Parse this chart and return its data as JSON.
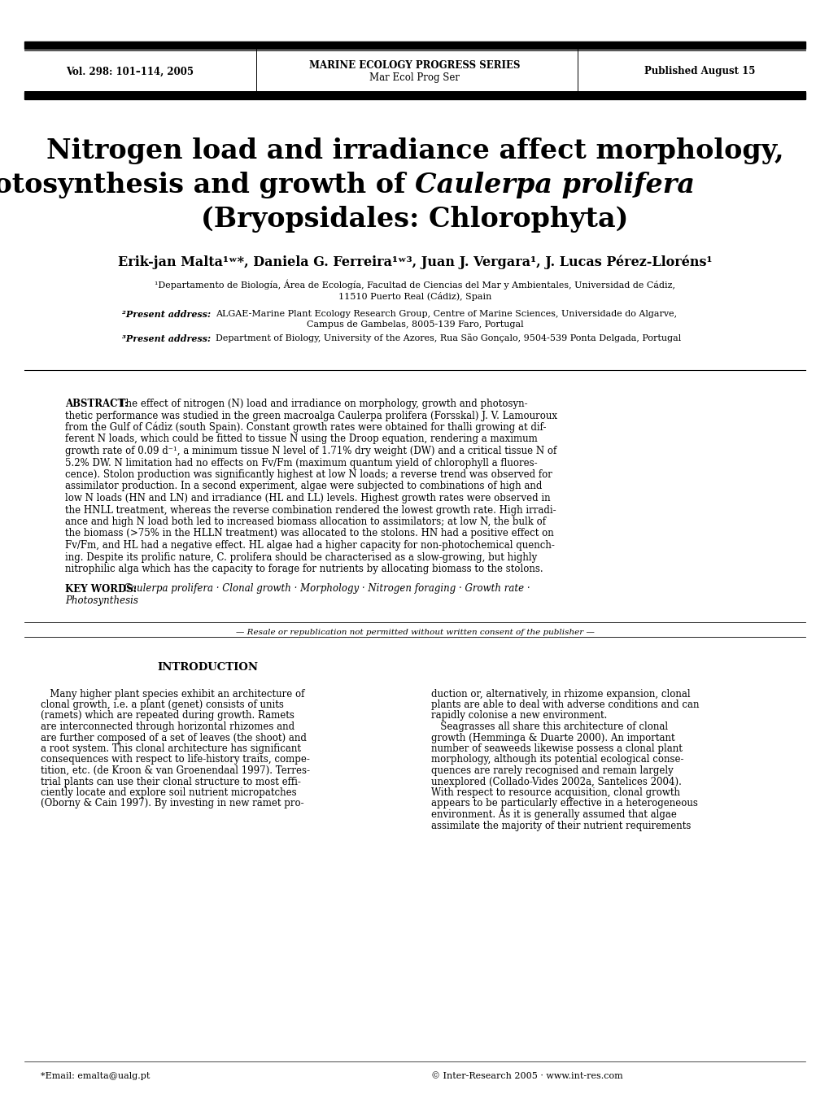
{
  "page_width": 10.2,
  "page_height": 13.45,
  "bg_color": "#ffffff",
  "header_left": "Vol. 298: 101–114, 2005",
  "header_center_top": "MARINE ECOLOGY PROGRESS SERIES",
  "header_center_bot": "Mar Ecol Prog Ser",
  "header_right": "Published August 15",
  "title_line1": "Nitrogen load and irradiance affect morphology,",
  "title_line2_plain": "photosynthesis and growth of ",
  "title_line2_italic": "Caulerpa prolifera",
  "title_line3": "(Bryopsidales: Chlorophyta)",
  "authors": "Erik-jan Malta",
  "authors_full": "Erik-jan Malta¹ʷ*, Daniela G. Ferreira¹ʷ³, Juan J. Vergara¹, J. Lucas Pérez-Lloréns¹",
  "affil1a": "¹Departamento de Biología, Área de Ecología, Facultad de Ciencias del Mar y Ambientales, Universidad de Cádiz,",
  "affil1b": "11510 Puerto Real (Cádiz), Spain",
  "affil2_label": "²Present address:",
  "affil2_text": "  ALGAE-Marine Plant Ecology Research Group, Centre of Marine Sciences, Universidade do Algarve,",
  "affil2b": "Campus de Gambelas, 8005-139 Faro, Portugal",
  "affil3_label": "³Present address:",
  "affil3_text": "  Department of Biology, University of the Azores, Rua São Gonçalo, 9504-539 Ponta Delgada, Portugal",
  "abstract_lines": [
    "ABSTRACT: The effect of nitrogen (N) load and irradiance on morphology, growth and photosyn-",
    "thetic performance was studied in the green macroalga Caulerpa prolifera (Forsskal) J. V. Lamouroux",
    "from the Gulf of Cádiz (south Spain). Constant growth rates were obtained for thalli growing at dif-",
    "ferent N loads, which could be fitted to tissue N using the Droop equation, rendering a maximum",
    "growth rate of 0.09 d⁻¹, a minimum tissue N level of 1.71% dry weight (DW) and a critical tissue N of",
    "5.2% DW. N limitation had no effects on Fv/Fm (maximum quantum yield of chlorophyll a fluores-",
    "cence). Stolon production was significantly highest at low N loads; a reverse trend was observed for",
    "assimilator production. In a second experiment, algae were subjected to combinations of high and",
    "low N loads (HN and LN) and irradiance (HL and LL) levels. Highest growth rates were observed in",
    "the HNLL treatment, whereas the reverse combination rendered the lowest growth rate. High irradi-",
    "ance and high N load both led to increased biomass allocation to assimilators; at low N, the bulk of",
    "the biomass (>75% in the HLLN treatment) was allocated to the stolons. HN had a positive effect on",
    "Fv/Fm, and HL had a negative effect. HL algae had a higher capacity for non-photochemical quench-",
    "ing. Despite its prolific nature, C. prolifera should be characterised as a slow-growing, but highly",
    "nitrophilic alga which has the capacity to forage for nutrients by allocating biomass to the stolons."
  ],
  "kw_label": "KEY WORDS:",
  "kw_line1": "  Caulerpa prolifera · Clonal growth · Morphology · Nitrogen foraging · Growth rate ·",
  "kw_line2": "Photosynthesis",
  "resale": "Resale or republication not permitted without written consent of the publisher",
  "intro_heading": "INTRODUCTION",
  "intro_left_lines": [
    "   Many higher plant species exhibit an architecture of",
    "clonal growth, i.e. a plant (genet) consists of units",
    "(ramets) which are repeated during growth. Ramets",
    "are interconnected through horizontal rhizomes and",
    "are further composed of a set of leaves (the shoot) and",
    "a root system. This clonal architecture has significant",
    "consequences with respect to life-history traits, compe-",
    "tition, etc. (de Kroon & van Groenendaal 1997). Terres-",
    "trial plants can use their clonal structure to most effi-",
    "ciently locate and explore soil nutrient micropatches",
    "(Oborny & Cain 1997). By investing in new ramet pro-"
  ],
  "intro_right_lines": [
    "duction or, alternatively, in rhizome expansion, clonal",
    "plants are able to deal with adverse conditions and can",
    "rapidly colonise a new environment.",
    "   Seagrasses all share this architecture of clonal",
    "growth (Hemminga & Duarte 2000). An important",
    "number of seaweeds likewise possess a clonal plant",
    "morphology, although its potential ecological conse-",
    "quences are rarely recognised and remain largely",
    "unexplored (Collado-Vides 2002a, Santelices 2004).",
    "With respect to resource acquisition, clonal growth",
    "appears to be particularly effective in a heterogeneous",
    "environment. As it is generally assumed that algae",
    "assimilate the majority of their nutrient requirements"
  ],
  "footnote_left": "*Email: emalta@ualg.pt",
  "footnote_right": "© Inter-Research 2005 · www.int-res.com"
}
